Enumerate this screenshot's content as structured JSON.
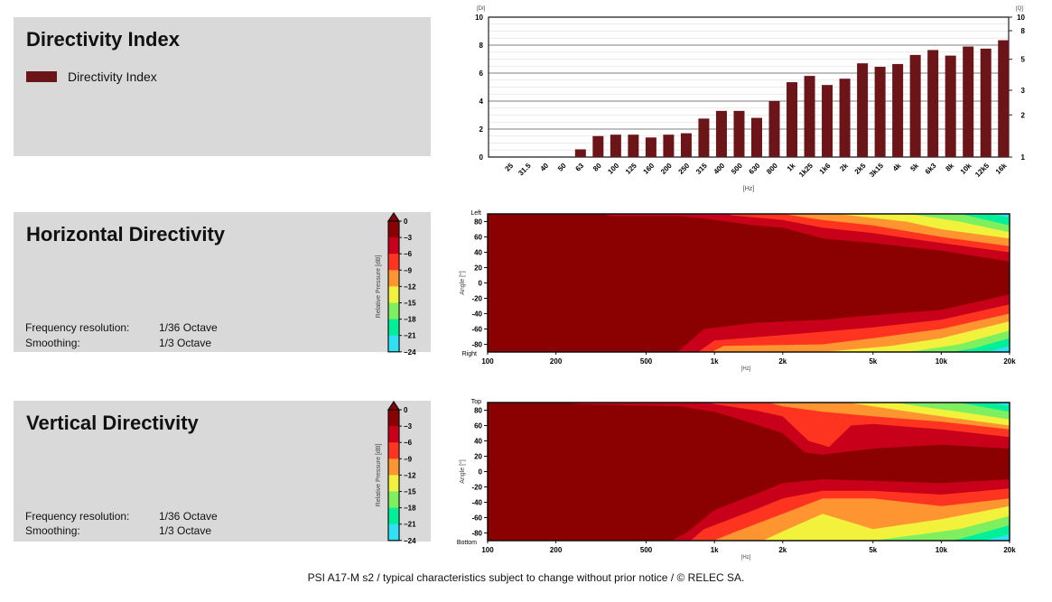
{
  "panels": {
    "di": {
      "title": "Directivity Index",
      "legend": "Directivity Index"
    },
    "horizontal": {
      "title": "Horizontal Directivity",
      "freq_res_label": "Frequency resolution:",
      "freq_res_value": "1/36 Octave",
      "smoothing_label": "Smoothing:",
      "smoothing_value": "1/3 Octave"
    },
    "vertical": {
      "title": "Vertical Directivity",
      "freq_res_label": "Frequency resolution:",
      "freq_res_value": "1/36 Octave",
      "smoothing_label": "Smoothing:",
      "smoothing_value": "1/3 Octave"
    }
  },
  "colorbar": {
    "label": "Relative Pressure [dB]",
    "ticks": [
      "0",
      "−3",
      "−6",
      "−9",
      "−12",
      "−15",
      "−18",
      "−21",
      "−24"
    ],
    "colors": [
      "#8b0000",
      "#c8001a",
      "#ff3420",
      "#ff9530",
      "#f2f23c",
      "#7ef060",
      "#00f09a",
      "#30e0f5"
    ]
  },
  "footer": "PSI A17-M s2 / typical characteristics subject to change without prior notice / © RELEC SA.",
  "chart_data": [
    {
      "type": "bar",
      "title": "",
      "ylabel": "[DI]",
      "ylabel_right": "[Q]",
      "xlabel": "[Hz]",
      "ylim": [
        0,
        10
      ],
      "yticks": [
        "0",
        "2",
        "4",
        "6",
        "8",
        "10"
      ],
      "yticks_right": [
        "1",
        "2",
        "3",
        "5",
        "8",
        "10"
      ],
      "bar_color": "#6b1519",
      "categories": [
        "25",
        "31.5",
        "40",
        "50",
        "63",
        "80",
        "100",
        "125",
        "160",
        "200",
        "250",
        "315",
        "400",
        "500",
        "630",
        "800",
        "1k",
        "1k25",
        "1k6",
        "2k",
        "2k5",
        "3k15",
        "4k",
        "5k",
        "6k3",
        "8k",
        "10k",
        "12k5",
        "16k"
      ],
      "values": [
        0,
        0,
        0,
        0,
        0.55,
        1.5,
        1.6,
        1.6,
        1.4,
        1.6,
        1.7,
        2.75,
        3.3,
        3.3,
        2.8,
        4.0,
        5.35,
        5.8,
        5.15,
        5.6,
        6.7,
        6.45,
        6.65,
        7.3,
        7.65,
        7.25,
        7.9,
        7.75,
        8.35
      ]
    },
    {
      "type": "heatmap",
      "name": "horizontal",
      "xlabel": "[Hz]",
      "ylabel": "Angle [°]",
      "top_label": "Left",
      "bottom_label": "Right",
      "xlim": [
        100,
        20000
      ],
      "ylim": [
        -90,
        90
      ],
      "xticks": [
        {
          "v": 100,
          "t": "100"
        },
        {
          "v": 200,
          "t": "200"
        },
        {
          "v": 500,
          "t": "500"
        },
        {
          "v": 1000,
          "t": "1k"
        },
        {
          "v": 2000,
          "t": "2k"
        },
        {
          "v": 5000,
          "t": "5k"
        },
        {
          "v": 10000,
          "t": "10k"
        },
        {
          "v": 20000,
          "t": "20k"
        }
      ],
      "yticks": [
        "80",
        "60",
        "40",
        "20",
        "0",
        "-20",
        "-40",
        "-60",
        "-80"
      ],
      "contours_top": [
        [
          [
            100,
            95
          ],
          [
            280,
            95
          ],
          [
            350,
            87
          ],
          [
            700,
            87
          ],
          [
            900,
            84
          ],
          [
            1500,
            75
          ],
          [
            2000,
            72
          ],
          [
            3000,
            58
          ],
          [
            5000,
            52
          ],
          [
            10000,
            42
          ],
          [
            20000,
            28
          ]
        ],
        [
          [
            100,
            95
          ],
          [
            1000,
            95
          ],
          [
            1200,
            88
          ],
          [
            2000,
            82
          ],
          [
            3000,
            72
          ],
          [
            5000,
            65
          ],
          [
            10000,
            52
          ],
          [
            20000,
            40
          ]
        ],
        [
          [
            1000,
            95
          ],
          [
            1800,
            92
          ],
          [
            3000,
            82
          ],
          [
            5000,
            75
          ],
          [
            10000,
            60
          ],
          [
            20000,
            48
          ]
        ],
        [
          [
            2500,
            95
          ],
          [
            4000,
            88
          ],
          [
            7000,
            80
          ],
          [
            10000,
            70
          ],
          [
            20000,
            58
          ]
        ],
        [
          [
            5000,
            95
          ],
          [
            8000,
            88
          ],
          [
            12000,
            80
          ],
          [
            20000,
            66
          ]
        ],
        [
          [
            10000,
            95
          ],
          [
            13000,
            88
          ],
          [
            20000,
            75
          ]
        ],
        [
          [
            14000,
            95
          ],
          [
            20000,
            85
          ]
        ]
      ],
      "contours_bottom": [
        [
          [
            100,
            -95
          ],
          [
            600,
            -95
          ],
          [
            700,
            -88
          ],
          [
            900,
            -60
          ],
          [
            1500,
            -52
          ],
          [
            3000,
            -48
          ],
          [
            5000,
            -42
          ],
          [
            10000,
            -35
          ],
          [
            20000,
            -15
          ]
        ],
        [
          [
            100,
            -95
          ],
          [
            800,
            -95
          ],
          [
            1000,
            -75
          ],
          [
            2000,
            -68
          ],
          [
            5000,
            -58
          ],
          [
            10000,
            -48
          ],
          [
            20000,
            -28
          ]
        ],
        [
          [
            900,
            -95
          ],
          [
            1100,
            -82
          ],
          [
            3000,
            -80
          ],
          [
            5000,
            -72
          ],
          [
            10000,
            -60
          ],
          [
            20000,
            -40
          ]
        ],
        [
          [
            1800,
            -95
          ],
          [
            3000,
            -90
          ],
          [
            6000,
            -82
          ],
          [
            10000,
            -72
          ],
          [
            20000,
            -50
          ]
        ],
        [
          [
            5000,
            -95
          ],
          [
            8000,
            -88
          ],
          [
            12000,
            -80
          ],
          [
            20000,
            -62
          ]
        ],
        [
          [
            9000,
            -95
          ],
          [
            14000,
            -85
          ],
          [
            20000,
            -72
          ]
        ],
        [
          [
            14000,
            -95
          ],
          [
            20000,
            -82
          ]
        ]
      ]
    },
    {
      "type": "heatmap",
      "name": "vertical",
      "xlabel": "[Hz]",
      "ylabel": "Angle [°]",
      "top_label": "Top",
      "bottom_label": "Bottom",
      "xlim": [
        100,
        20000
      ],
      "ylim": [
        -90,
        90
      ],
      "xticks": [
        {
          "v": 100,
          "t": "100"
        },
        {
          "v": 200,
          "t": "200"
        },
        {
          "v": 500,
          "t": "500"
        },
        {
          "v": 1000,
          "t": "1k"
        },
        {
          "v": 2000,
          "t": "2k"
        },
        {
          "v": 5000,
          "t": "5k"
        },
        {
          "v": 10000,
          "t": "10k"
        },
        {
          "v": 20000,
          "t": "20k"
        }
      ],
      "yticks": [
        "80",
        "60",
        "40",
        "20",
        "0",
        "-20",
        "-40",
        "-60",
        "-80"
      ],
      "contours_top": [
        [
          [
            100,
            95
          ],
          [
            180,
            95
          ],
          [
            250,
            88
          ],
          [
            700,
            85
          ],
          [
            1000,
            78
          ],
          [
            1500,
            62
          ],
          [
            2000,
            50
          ],
          [
            2500,
            25
          ],
          [
            3000,
            22
          ],
          [
            5000,
            30
          ],
          [
            10000,
            35
          ],
          [
            20000,
            30
          ]
        ],
        [
          [
            800,
            95
          ],
          [
            1000,
            88
          ],
          [
            1500,
            80
          ],
          [
            2000,
            72
          ],
          [
            2600,
            40
          ],
          [
            3200,
            32
          ],
          [
            4000,
            60
          ],
          [
            5000,
            62
          ],
          [
            10000,
            55
          ],
          [
            20000,
            45
          ]
        ],
        [
          [
            1500,
            95
          ],
          [
            2000,
            85
          ],
          [
            3000,
            78
          ],
          [
            5000,
            72
          ],
          [
            10000,
            65
          ],
          [
            20000,
            55
          ]
        ],
        [
          [
            3000,
            95
          ],
          [
            5000,
            85
          ],
          [
            10000,
            72
          ],
          [
            20000,
            60
          ]
        ],
        [
          [
            5000,
            95
          ],
          [
            8000,
            85
          ],
          [
            12000,
            78
          ],
          [
            20000,
            68
          ]
        ],
        [
          [
            9000,
            95
          ],
          [
            13000,
            88
          ],
          [
            20000,
            78
          ]
        ],
        [
          [
            14000,
            95
          ],
          [
            20000,
            85
          ]
        ]
      ],
      "contours_bottom": [
        [
          [
            100,
            -95
          ],
          [
            600,
            -95
          ],
          [
            750,
            -80
          ],
          [
            1000,
            -50
          ],
          [
            1500,
            -30
          ],
          [
            2000,
            -15
          ],
          [
            3000,
            -10
          ],
          [
            5000,
            -12
          ],
          [
            10000,
            -15
          ],
          [
            20000,
            -10
          ]
        ],
        [
          [
            100,
            -95
          ],
          [
            750,
            -95
          ],
          [
            900,
            -75
          ],
          [
            1500,
            -50
          ],
          [
            2000,
            -35
          ],
          [
            3000,
            -25
          ],
          [
            5000,
            -25
          ],
          [
            10000,
            -30
          ],
          [
            20000,
            -22
          ]
        ],
        [
          [
            900,
            -95
          ],
          [
            1200,
            -80
          ],
          [
            2000,
            -55
          ],
          [
            3000,
            -35
          ],
          [
            5000,
            -35
          ],
          [
            10000,
            -45
          ],
          [
            20000,
            -35
          ]
        ],
        [
          [
            1500,
            -95
          ],
          [
            2000,
            -78
          ],
          [
            3000,
            -55
          ],
          [
            5000,
            -75
          ],
          [
            10000,
            -62
          ],
          [
            20000,
            -45
          ]
        ],
        [
          [
            2500,
            -95
          ],
          [
            5000,
            -90
          ],
          [
            8000,
            -82
          ],
          [
            12000,
            -75
          ],
          [
            20000,
            -58
          ]
        ],
        [
          [
            8000,
            -95
          ],
          [
            12000,
            -88
          ],
          [
            20000,
            -70
          ]
        ],
        [
          [
            13000,
            -95
          ],
          [
            20000,
            -82
          ]
        ]
      ]
    }
  ]
}
